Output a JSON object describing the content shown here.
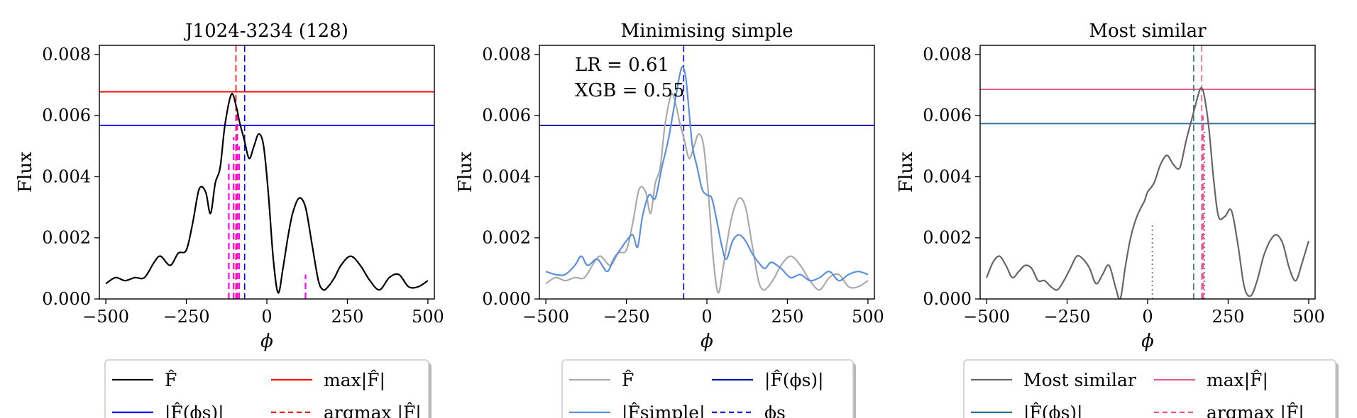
{
  "chart_data": [
    {
      "type": "line",
      "title": "J1024-3234 (128)",
      "xlabel": "ϕ",
      "ylabel": "Flux",
      "xlim": [
        -520,
        520
      ],
      "ylim": [
        0,
        0.0083
      ],
      "xticks": [
        -500,
        -250,
        0,
        250,
        500
      ],
      "xtick_labels": [
        "−500",
        "−250",
        "0",
        "250",
        "500"
      ],
      "yticks": [
        0,
        0.002,
        0.004,
        0.006,
        0.008
      ],
      "ytick_labels": [
        "0.000",
        "0.002",
        "0.004",
        "0.006",
        "0.008"
      ],
      "series": [
        {
          "name": "F̂",
          "color": "#000000",
          "x": [
            -500,
            -470,
            -440,
            -410,
            -380,
            -350,
            -330,
            -300,
            -275,
            -250,
            -230,
            -210,
            -190,
            -175,
            -160,
            -145,
            -130,
            -110,
            -95,
            -85,
            -70,
            -55,
            -40,
            -25,
            -10,
            5,
            20,
            35,
            50,
            65,
            80,
            100,
            120,
            140,
            160,
            175,
            190,
            210,
            230,
            260,
            290,
            320,
            350,
            380,
            410,
            440,
            470,
            500
          ],
          "y": [
            0.0005,
            0.0007,
            0.0006,
            0.0007,
            0.0007,
            0.0012,
            0.0014,
            0.0011,
            0.0015,
            0.0016,
            0.0025,
            0.0036,
            0.0035,
            0.0028,
            0.0038,
            0.0043,
            0.0057,
            0.0067,
            0.0063,
            0.0058,
            0.0052,
            0.0046,
            0.005,
            0.0054,
            0.005,
            0.0034,
            0.0013,
            0.0002,
            0.001,
            0.002,
            0.0028,
            0.0033,
            0.003,
            0.0018,
            0.0006,
            0.0003,
            0.0004,
            0.0007,
            0.0011,
            0.0014,
            0.0011,
            0.0006,
            0.0003,
            0.0007,
            0.0008,
            0.0004,
            0.0004,
            0.0006
          ]
        }
      ],
      "hlines": [
        {
          "name": "max|F̂|",
          "y": 0.00678,
          "color": "#ff0000",
          "style": "solid"
        },
        {
          "name": "|F̂(ϕs)|",
          "y": 0.00568,
          "color": "#0000ff",
          "style": "solid"
        }
      ],
      "vlines": [
        {
          "name": "argmax |F̂|",
          "x": -96,
          "color": "#ff0000",
          "style": "dashed"
        },
        {
          "name": "ϕs",
          "x": -69,
          "color": "#0000ff",
          "style": "dashed"
        }
      ],
      "markers": [
        {
          "x": -118,
          "height": 0.0045,
          "color": "#ff00ff"
        },
        {
          "x": -103,
          "height": 0.0053,
          "color": "#ff00ff"
        },
        {
          "x": -92,
          "height": 0.0062,
          "color": "#ff00ff"
        },
        {
          "x": -86,
          "height": 0.005,
          "color": "#ff00ff"
        },
        {
          "x": 120,
          "height": 0.0008,
          "color": "#ff00ff"
        }
      ],
      "annotations": [],
      "legend": {
        "placement": "below",
        "entries": [
          {
            "label": "F̂",
            "color": "#000000",
            "style": "solid"
          },
          {
            "label": "max|F̂|",
            "color": "#ff0000",
            "style": "solid"
          },
          {
            "label": "|F̂(ϕs)|",
            "color": "#0000ff",
            "style": "solid"
          },
          {
            "label": "argmax |F̂|",
            "color": "#ff0000",
            "style": "dashed"
          }
        ]
      }
    },
    {
      "type": "line",
      "title": "Minimising simple",
      "xlabel": "ϕ",
      "ylabel": "Flux",
      "xlim": [
        -520,
        520
      ],
      "ylim": [
        0,
        0.0083
      ],
      "xticks": [
        -500,
        -250,
        0,
        250,
        500
      ],
      "xtick_labels": [
        "−500",
        "−250",
        "0",
        "250",
        "500"
      ],
      "yticks": [
        0,
        0.002,
        0.004,
        0.006,
        0.008
      ],
      "ytick_labels": [
        "0.000",
        "0.002",
        "0.004",
        "0.006",
        "0.008"
      ],
      "series": [
        {
          "name": "F̂",
          "color": "#aaaaaa",
          "x": [
            -500,
            -470,
            -440,
            -410,
            -380,
            -350,
            -330,
            -300,
            -275,
            -250,
            -230,
            -210,
            -190,
            -175,
            -160,
            -145,
            -130,
            -110,
            -95,
            -85,
            -70,
            -55,
            -40,
            -25,
            -10,
            5,
            20,
            35,
            50,
            65,
            80,
            100,
            120,
            140,
            160,
            175,
            190,
            210,
            230,
            260,
            290,
            320,
            350,
            380,
            410,
            440,
            470,
            500
          ],
          "y": [
            0.0005,
            0.0007,
            0.0006,
            0.0007,
            0.0007,
            0.0012,
            0.0014,
            0.0011,
            0.0015,
            0.0016,
            0.0025,
            0.0036,
            0.0035,
            0.0028,
            0.0038,
            0.0043,
            0.0057,
            0.0067,
            0.0063,
            0.0058,
            0.0052,
            0.0046,
            0.005,
            0.0054,
            0.005,
            0.0034,
            0.0013,
            0.0002,
            0.001,
            0.002,
            0.0028,
            0.0033,
            0.003,
            0.0018,
            0.0006,
            0.0003,
            0.0004,
            0.0007,
            0.0011,
            0.0014,
            0.0011,
            0.0006,
            0.0003,
            0.0007,
            0.0008,
            0.0004,
            0.0004,
            0.0006
          ]
        },
        {
          "name": "|F̂simple|",
          "color": "#5b8fe0",
          "x": [
            -500,
            -470,
            -440,
            -410,
            -390,
            -370,
            -340,
            -310,
            -290,
            -270,
            -250,
            -230,
            -215,
            -200,
            -180,
            -160,
            -140,
            -120,
            -100,
            -85,
            -75,
            -65,
            -55,
            -45,
            -30,
            -15,
            0,
            15,
            30,
            45,
            60,
            80,
            100,
            120,
            140,
            160,
            180,
            200,
            230,
            260,
            290,
            320,
            350,
            380,
            410,
            440,
            470,
            500
          ],
          "y": [
            0.0009,
            0.0008,
            0.0008,
            0.0011,
            0.0014,
            0.0011,
            0.0013,
            0.0009,
            0.0013,
            0.0016,
            0.0019,
            0.0021,
            0.0017,
            0.0027,
            0.0034,
            0.0033,
            0.0043,
            0.0052,
            0.0064,
            0.0073,
            0.0076,
            0.0072,
            0.0061,
            0.005,
            0.0043,
            0.0036,
            0.0034,
            0.0033,
            0.0026,
            0.0018,
            0.0013,
            0.0019,
            0.0021,
            0.0019,
            0.0015,
            0.0012,
            0.001,
            0.0012,
            0.001,
            0.0007,
            0.0008,
            0.0006,
            0.0007,
            0.0009,
            0.0006,
            0.0008,
            0.0009,
            0.0008
          ]
        }
      ],
      "hlines": [
        {
          "name": "|F̂(ϕs)|",
          "y": 0.00568,
          "color": "#0000aa",
          "style": "solid"
        }
      ],
      "vlines": [
        {
          "name": "ϕs",
          "x": -72,
          "color": "#0000ff",
          "style": "dashed"
        }
      ],
      "markers": [],
      "annotations": [
        "LR = 0.61",
        "XGB = 0.55"
      ],
      "legend": {
        "placement": "below",
        "entries": [
          {
            "label": "F̂",
            "color": "#aaaaaa",
            "style": "solid"
          },
          {
            "label": "|F̂(ϕs)|",
            "color": "#0000aa",
            "style": "solid"
          },
          {
            "label": "|F̂simple|",
            "color": "#5b8fe0",
            "style": "solid"
          },
          {
            "label": "ϕs",
            "color": "#0000ff",
            "style": "dashed"
          }
        ]
      }
    },
    {
      "type": "line",
      "title": "Most similar",
      "xlabel": "ϕ",
      "ylabel": "Flux",
      "xlim": [
        -520,
        520
      ],
      "ylim": [
        0,
        0.0083
      ],
      "xticks": [
        -500,
        -250,
        0,
        250,
        500
      ],
      "xtick_labels": [
        "−500",
        "−250",
        "0",
        "250",
        "500"
      ],
      "yticks": [
        0,
        0.002,
        0.004,
        0.006,
        0.008
      ],
      "ytick_labels": [
        "0.000",
        "0.002",
        "0.004",
        "0.006",
        "0.008"
      ],
      "series": [
        {
          "name": "Most similar",
          "color": "#666666",
          "x": [
            -500,
            -480,
            -460,
            -440,
            -420,
            -400,
            -380,
            -360,
            -340,
            -320,
            -300,
            -280,
            -260,
            -240,
            -220,
            -200,
            -180,
            -160,
            -140,
            -120,
            -100,
            -85,
            -70,
            -55,
            -40,
            -25,
            -10,
            0,
            20,
            40,
            60,
            80,
            100,
            120,
            140,
            155,
            165,
            175,
            190,
            205,
            220,
            240,
            260,
            280,
            300,
            320,
            340,
            360,
            380,
            400,
            420,
            440,
            460,
            480,
            500
          ],
          "y": [
            0.0007,
            0.0012,
            0.0014,
            0.0011,
            0.0007,
            0.0009,
            0.0011,
            0.001,
            0.0006,
            0.0006,
            0.0004,
            0.0003,
            0.0006,
            0.001,
            0.0014,
            0.0013,
            0.001,
            0.0005,
            0.0008,
            0.0011,
            0.0004,
            0.0,
            0.001,
            0.0019,
            0.0025,
            0.0029,
            0.0032,
            0.0035,
            0.0038,
            0.0044,
            0.0047,
            0.0044,
            0.0043,
            0.0052,
            0.006,
            0.0066,
            0.0069,
            0.0067,
            0.0056,
            0.0039,
            0.0027,
            0.0027,
            0.0029,
            0.0018,
            0.0004,
            0.0001,
            0.0006,
            0.0014,
            0.0019,
            0.0021,
            0.0018,
            0.001,
            0.0006,
            0.0012,
            0.0019
          ]
        }
      ],
      "hlines": [
        {
          "name": "max|F̂|",
          "y": 0.00686,
          "color": "#e05a8a",
          "style": "solid"
        },
        {
          "name": "|F̂(ϕs)|",
          "y": 0.00574,
          "color": "#2e7090",
          "style": "solid"
        }
      ],
      "vlines": [
        {
          "name": "argmax |F̂|",
          "x": 168,
          "color": "#e05a8a",
          "style": "dashed"
        },
        {
          "name": "ϕs",
          "x": 143,
          "color": "#2e7090",
          "style": "dashed"
        }
      ],
      "markers": [
        {
          "x": 15,
          "height": 0.0025,
          "color": "#888888",
          "style": "dotted"
        },
        {
          "x": 172,
          "height": 0.006,
          "color": "#e05a8a",
          "style": "dashed"
        },
        {
          "x": 176,
          "height": 0.0055,
          "color": "#e05a8a",
          "style": "dotted"
        }
      ],
      "annotations": [],
      "legend": {
        "placement": "below",
        "entries": [
          {
            "label": "Most similar",
            "color": "#666666",
            "style": "solid"
          },
          {
            "label": "max|F̂|",
            "color": "#e05a8a",
            "style": "solid"
          },
          {
            "label": "|F̂(ϕs)|",
            "color": "#2e7090",
            "style": "solid"
          },
          {
            "label": "argmax |F̂|",
            "color": "#e05a8a",
            "style": "dashed"
          }
        ]
      }
    }
  ]
}
